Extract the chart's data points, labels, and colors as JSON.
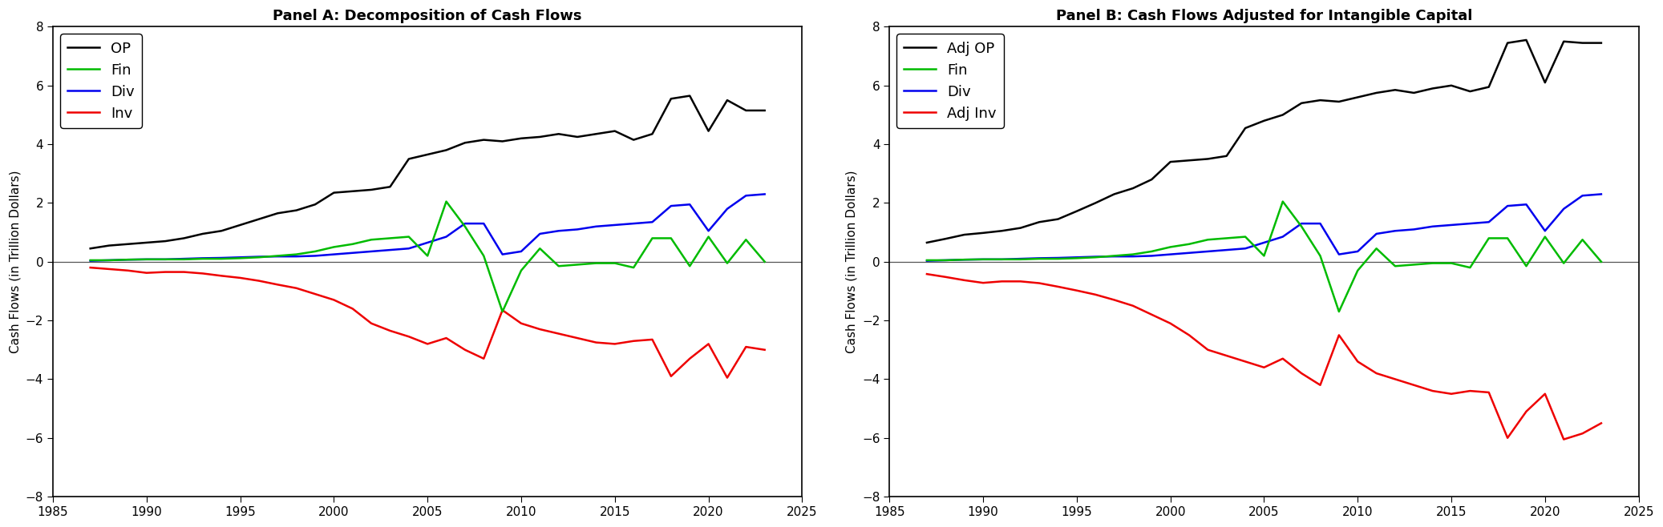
{
  "years": [
    1987,
    1988,
    1989,
    1990,
    1991,
    1992,
    1993,
    1994,
    1995,
    1996,
    1997,
    1998,
    1999,
    2000,
    2001,
    2002,
    2003,
    2004,
    2005,
    2006,
    2007,
    2008,
    2009,
    2010,
    2011,
    2012,
    2013,
    2014,
    2015,
    2016,
    2017,
    2018,
    2019,
    2020,
    2021,
    2022,
    2023
  ],
  "panel_a": {
    "OP": [
      0.45,
      0.55,
      0.6,
      0.65,
      0.7,
      0.8,
      0.95,
      1.05,
      1.25,
      1.45,
      1.65,
      1.75,
      1.95,
      2.35,
      2.4,
      2.45,
      2.55,
      3.5,
      3.65,
      3.8,
      4.05,
      4.15,
      4.1,
      4.2,
      4.25,
      4.35,
      4.25,
      4.35,
      4.45,
      4.15,
      4.35,
      5.55,
      5.65,
      4.45,
      5.5,
      5.15,
      5.15
    ],
    "Fin": [
      0.05,
      0.05,
      0.07,
      0.08,
      0.08,
      0.08,
      0.1,
      0.1,
      0.12,
      0.15,
      0.2,
      0.25,
      0.35,
      0.5,
      0.6,
      0.75,
      0.8,
      0.85,
      0.2,
      2.05,
      1.2,
      0.2,
      -1.7,
      -0.3,
      0.45,
      -0.15,
      -0.1,
      -0.05,
      -0.05,
      -0.2,
      0.8,
      0.8,
      -0.15,
      0.85,
      -0.05,
      0.75,
      0.0
    ],
    "Div": [
      0.03,
      0.05,
      0.07,
      0.08,
      0.08,
      0.1,
      0.12,
      0.13,
      0.15,
      0.17,
      0.18,
      0.18,
      0.2,
      0.25,
      0.3,
      0.35,
      0.4,
      0.45,
      0.65,
      0.85,
      1.3,
      1.3,
      0.25,
      0.35,
      0.95,
      1.05,
      1.1,
      1.2,
      1.25,
      1.3,
      1.35,
      1.9,
      1.95,
      1.05,
      1.8,
      2.25,
      2.3
    ],
    "Inv": [
      -0.2,
      -0.25,
      -0.3,
      -0.38,
      -0.35,
      -0.35,
      -0.4,
      -0.48,
      -0.55,
      -0.65,
      -0.78,
      -0.9,
      -1.1,
      -1.3,
      -1.6,
      -2.1,
      -2.35,
      -2.55,
      -2.8,
      -2.6,
      -3.0,
      -3.3,
      -1.65,
      -2.1,
      -2.3,
      -2.45,
      -2.6,
      -2.75,
      -2.8,
      -2.7,
      -2.65,
      -3.9,
      -3.3,
      -2.8,
      -3.95,
      -2.9,
      -3.0
    ]
  },
  "panel_b": {
    "Adj_OP": [
      0.65,
      0.78,
      0.92,
      0.98,
      1.05,
      1.15,
      1.35,
      1.45,
      1.72,
      2.0,
      2.3,
      2.5,
      2.8,
      3.4,
      3.45,
      3.5,
      3.6,
      4.55,
      4.8,
      5.0,
      5.4,
      5.5,
      5.45,
      5.6,
      5.75,
      5.85,
      5.75,
      5.9,
      6.0,
      5.8,
      5.95,
      7.45,
      7.55,
      6.1,
      7.5,
      7.45,
      7.45
    ],
    "Fin": [
      0.05,
      0.05,
      0.07,
      0.08,
      0.08,
      0.08,
      0.1,
      0.1,
      0.12,
      0.15,
      0.2,
      0.25,
      0.35,
      0.5,
      0.6,
      0.75,
      0.8,
      0.85,
      0.2,
      2.05,
      1.2,
      0.2,
      -1.7,
      -0.3,
      0.45,
      -0.15,
      -0.1,
      -0.05,
      -0.05,
      -0.2,
      0.8,
      0.8,
      -0.15,
      0.85,
      -0.05,
      0.75,
      0.0
    ],
    "Div": [
      0.03,
      0.05,
      0.07,
      0.08,
      0.08,
      0.1,
      0.12,
      0.13,
      0.15,
      0.17,
      0.18,
      0.18,
      0.2,
      0.25,
      0.3,
      0.35,
      0.4,
      0.45,
      0.65,
      0.85,
      1.3,
      1.3,
      0.25,
      0.35,
      0.95,
      1.05,
      1.1,
      1.2,
      1.25,
      1.3,
      1.35,
      1.9,
      1.95,
      1.05,
      1.8,
      2.25,
      2.3
    ],
    "Adj_Inv": [
      -0.42,
      -0.52,
      -0.63,
      -0.72,
      -0.67,
      -0.67,
      -0.73,
      -0.85,
      -0.98,
      -1.12,
      -1.3,
      -1.5,
      -1.8,
      -2.1,
      -2.5,
      -3.0,
      -3.2,
      -3.4,
      -3.6,
      -3.3,
      -3.8,
      -4.2,
      -2.5,
      -3.4,
      -3.8,
      -4.0,
      -4.2,
      -4.4,
      -4.5,
      -4.4,
      -4.45,
      -6.0,
      -5.1,
      -4.5,
      -6.05,
      -5.85,
      -5.5
    ]
  },
  "title_a": "Panel A: Decomposition of Cash Flows",
  "title_b": "Panel B: Cash Flows Adjusted for Intangible Capital",
  "ylabel": "Cash Flows (in Trillion Dollars)",
  "xlim": [
    1985,
    2025
  ],
  "ylim": [
    -8,
    8
  ],
  "yticks": [
    -8,
    -6,
    -4,
    -2,
    0,
    2,
    4,
    6,
    8
  ],
  "xticks": [
    1985,
    1990,
    1995,
    2000,
    2005,
    2010,
    2015,
    2020,
    2025
  ],
  "colors": {
    "OP": "#000000",
    "Fin": "#00BB00",
    "Div": "#0000EE",
    "Inv": "#EE0000"
  },
  "legend_a": [
    "OP",
    "Fin",
    "Div",
    "Inv"
  ],
  "legend_b": [
    "Adj OP",
    "Fin",
    "Div",
    "Adj Inv"
  ],
  "linewidth": 1.8,
  "title_fontsize": 13,
  "label_fontsize": 11,
  "tick_fontsize": 11,
  "legend_fontsize": 13,
  "bg_color": "#FFFFFF"
}
